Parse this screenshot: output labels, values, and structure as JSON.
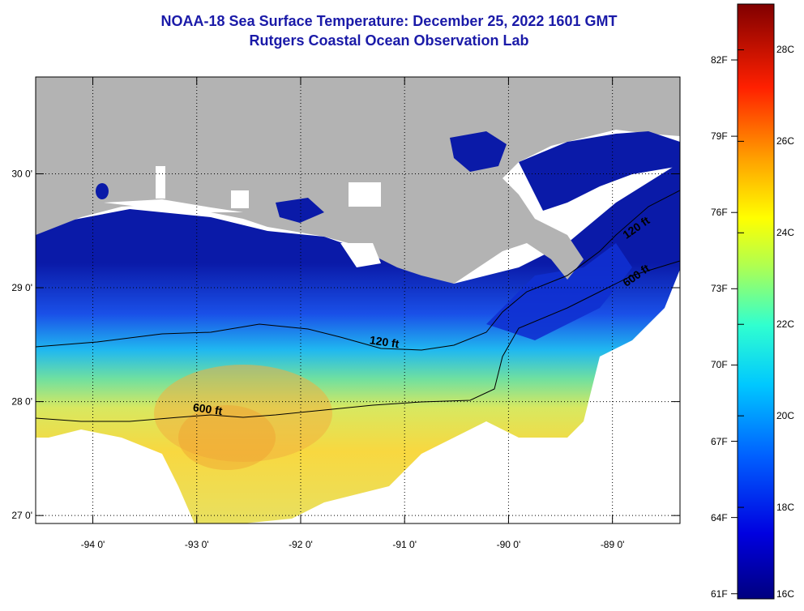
{
  "title": {
    "line1": "NOAA-18 Sea Surface Temperature:  December 25, 2022 1601 GMT",
    "line2": "Rutgers Coastal Ocean Observation Lab"
  },
  "map": {
    "lon_range": [
      -94.55,
      -88.35
    ],
    "lat_range": [
      26.93,
      30.85
    ],
    "x_ticks": [
      {
        "value": -94,
        "label": "-94 0'"
      },
      {
        "value": -93,
        "label": "-93 0'"
      },
      {
        "value": -92,
        "label": "-92 0'"
      },
      {
        "value": -91,
        "label": "-91 0'"
      },
      {
        "value": -90,
        "label": "-90 0'"
      },
      {
        "value": -89,
        "label": "-89 0'"
      }
    ],
    "y_ticks": [
      {
        "value": 30,
        "label": "30 0'"
      },
      {
        "value": 29,
        "label": "29 0'"
      },
      {
        "value": 28,
        "label": "28 0'"
      },
      {
        "value": 27,
        "label": "27 0'"
      }
    ],
    "contour_labels": [
      {
        "text": "120 ft",
        "lon": -91.2,
        "lat": 28.49
      },
      {
        "text": "600 ft",
        "lon": -92.9,
        "lat": 27.9
      },
      {
        "text": "120 ft",
        "lon": -88.75,
        "lat": 29.5
      },
      {
        "text": "600 ft",
        "lon": -88.75,
        "lat": 29.08
      }
    ],
    "colors": {
      "land": "#b3b3b3",
      "cloud": "#ffffff",
      "frame": "#000000"
    }
  },
  "colorbar": {
    "min_c": 16,
    "max_c": 29,
    "celsius_labels": [
      "28C",
      "26C",
      "24C",
      "22C",
      "20C",
      "18C",
      "16C"
    ],
    "fahrenheit_labels": [
      "82F",
      "79F",
      "76F",
      "73F",
      "70F",
      "67F",
      "64F",
      "61F"
    ]
  }
}
